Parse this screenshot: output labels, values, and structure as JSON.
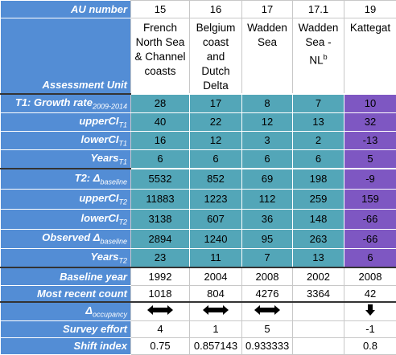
{
  "table": {
    "header": {
      "label": "AU number",
      "values": [
        15,
        16,
        17,
        17.1,
        19
      ]
    },
    "units": {
      "label": "Assessment Unit",
      "names": [
        {
          "name": "French North Sea & Channel coasts"
        },
        {
          "name": "Belgium coast and Dutch Delta"
        },
        {
          "name": "Wadden Sea"
        },
        {
          "name": "Wadden Sea - NL",
          "note": "b"
        },
        {
          "name": "Kattegat"
        }
      ]
    },
    "model_rows": [
      {
        "label": "T1: Growth rate",
        "sub": "2009-2014",
        "values": [
          28,
          17,
          8,
          7,
          10
        ]
      },
      {
        "label": "upperCI",
        "sub": "T1",
        "values": [
          40,
          22,
          12,
          13,
          32
        ]
      },
      {
        "label": "lowerCI",
        "sub": "T1",
        "values": [
          16,
          12,
          3,
          2,
          -13
        ]
      },
      {
        "label": "Years",
        "sub": "T1",
        "values": [
          6,
          6,
          6,
          6,
          5
        ]
      },
      {
        "label": "T2: Δ",
        "sub": "baseline",
        "values": [
          5532,
          852,
          69,
          198,
          -9
        ]
      },
      {
        "label": "upperCI",
        "sub": "T2",
        "values": [
          11883,
          1223,
          112,
          259,
          159
        ]
      },
      {
        "label": "lowerCI",
        "sub": "T2",
        "values": [
          3138,
          607,
          36,
          148,
          -66
        ]
      },
      {
        "label": "Observed Δ",
        "sub": "baseline",
        "values": [
          2894,
          1240,
          95,
          263,
          -66
        ]
      },
      {
        "label": "Years",
        "sub": "T2",
        "values": [
          23,
          11,
          7,
          13,
          6
        ]
      }
    ],
    "count_rows": [
      {
        "label": "Baseline year",
        "values": [
          1992,
          2004,
          2008,
          2002,
          2008
        ]
      },
      {
        "label": "Most recent count",
        "values": [
          1018,
          804,
          4276,
          3364,
          42
        ]
      }
    ],
    "occupancy": {
      "label": "Δ",
      "sub": "occupancy"
    },
    "effort_rows": [
      {
        "label": "Survey effort",
        "values": [
          4,
          1,
          5,
          null,
          -1
        ]
      },
      {
        "label": "Shift index",
        "values": [
          0.75,
          0.857143,
          0.933333,
          null,
          0.8
        ]
      }
    ]
  }
}
